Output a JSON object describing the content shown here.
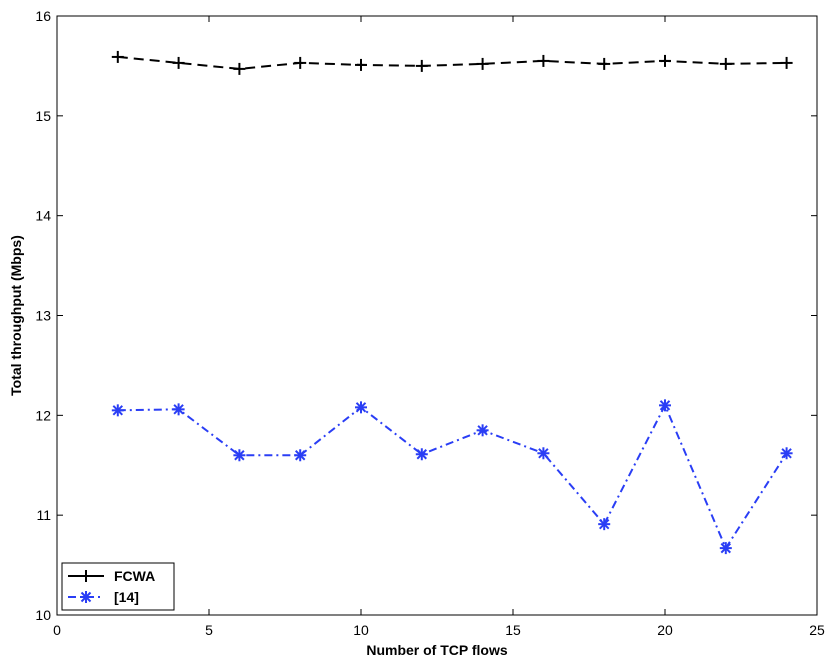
{
  "chart_data": {
    "type": "line",
    "title": "",
    "xlabel": "Number of TCP flows",
    "ylabel": "Total throughput (Mbps)",
    "xlim": [
      0,
      25
    ],
    "ylim": [
      10,
      16
    ],
    "xticks": [
      0,
      5,
      10,
      15,
      20,
      25
    ],
    "yticks": [
      10,
      11,
      12,
      13,
      14,
      15,
      16
    ],
    "grid": false,
    "legend_position": "bottom-left",
    "x": [
      2,
      4,
      6,
      8,
      10,
      12,
      14,
      16,
      18,
      20,
      22,
      24
    ],
    "series": [
      {
        "name": "FCWA",
        "color": "#000000",
        "line_style": "dashed",
        "marker": "plus",
        "values": [
          15.59,
          15.53,
          15.47,
          15.53,
          15.51,
          15.5,
          15.52,
          15.55,
          15.52,
          15.55,
          15.52,
          15.53
        ]
      },
      {
        "name": "[14]",
        "color": "#2a3ef5",
        "line_style": "dash-dot",
        "marker": "asterisk",
        "values": [
          12.05,
          12.06,
          11.6,
          11.6,
          12.08,
          11.61,
          11.85,
          11.62,
          10.91,
          12.1,
          10.67,
          11.62
        ]
      }
    ]
  }
}
